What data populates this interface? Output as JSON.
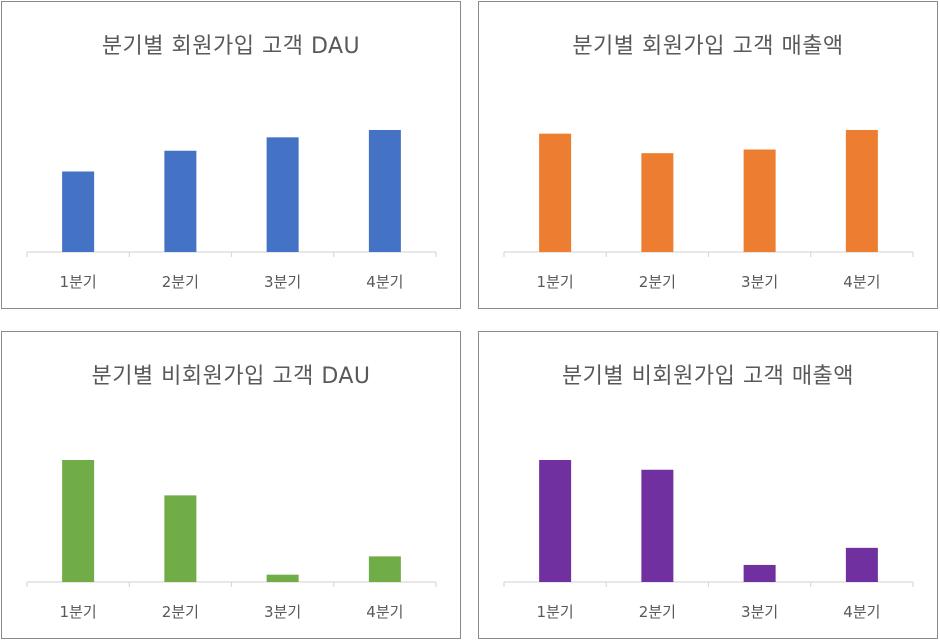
{
  "chart_data": [
    {
      "type": "bar",
      "title": "분기별 회원가입 고객 DAU",
      "categories": [
        "1분기",
        "2분기",
        "3분기",
        "4분기"
      ],
      "values": [
        66,
        83,
        94,
        100
      ],
      "ylim": [
        0,
        100
      ],
      "color": "#4472C4",
      "grid": false
    },
    {
      "type": "bar",
      "title": "분기별 회원가입 고객 매출액",
      "categories": [
        "1분기",
        "2분기",
        "3분기",
        "4분기"
      ],
      "values": [
        97,
        81,
        84,
        100
      ],
      "ylim": [
        0,
        100
      ],
      "color": "#ED7D31",
      "grid": false
    },
    {
      "type": "bar",
      "title": "분기별 비회원가입 고객 DAU",
      "categories": [
        "1분기",
        "2분기",
        "3분기",
        "4분기"
      ],
      "values": [
        100,
        71,
        6,
        21
      ],
      "ylim": [
        0,
        100
      ],
      "color": "#70AD47",
      "grid": false
    },
    {
      "type": "bar",
      "title": "분기별 비회원가입 고객 매출액",
      "categories": [
        "1분기",
        "2분기",
        "3분기",
        "4분기"
      ],
      "values": [
        100,
        92,
        14,
        28
      ],
      "ylim": [
        0,
        100
      ],
      "color": "#7030A0",
      "grid": false
    }
  ]
}
